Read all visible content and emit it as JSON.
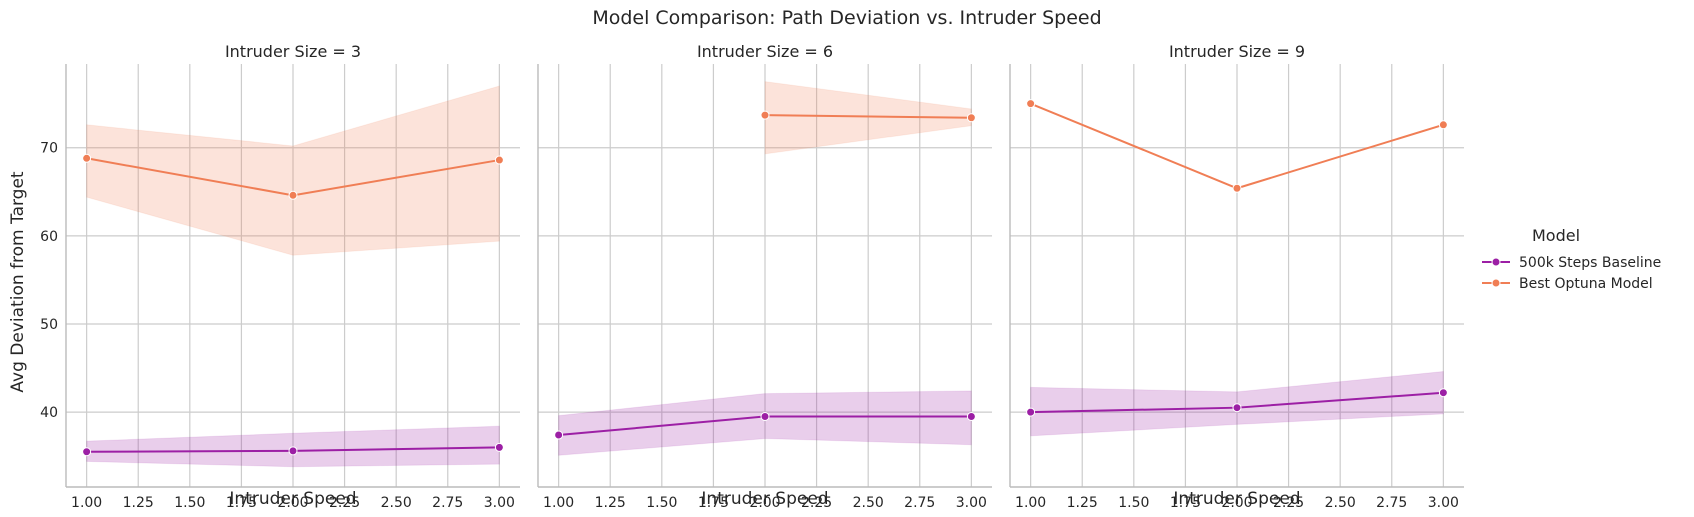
{
  "chart_data": {
    "type": "line",
    "title": "Model Comparison: Path Deviation vs. Intruder Speed",
    "xlabel": "Intruder Speed",
    "ylabel": "Avg Deviation from Target",
    "xlim": [
      0.9,
      3.1
    ],
    "ylim": [
      31.5,
      79.5
    ],
    "xticks": [
      1.0,
      1.25,
      1.5,
      1.75,
      2.0,
      2.25,
      2.5,
      2.75,
      3.0
    ],
    "xtick_labels": [
      "1.00",
      "1.25",
      "1.50",
      "1.75",
      "2.00",
      "2.25",
      "2.50",
      "2.75",
      "3.00"
    ],
    "yticks": [
      40,
      50,
      60,
      70
    ],
    "ytick_labels": [
      "40",
      "50",
      "60",
      "70"
    ],
    "grid": true,
    "legend": {
      "title": "Model",
      "placement": "right",
      "entries": [
        "500k Steps Baseline",
        "Best Optuna Model"
      ]
    },
    "colors": {
      "500k Steps Baseline": "#9c1fa5",
      "Best Optuna Model": "#f07e55"
    },
    "panels": [
      {
        "title": "Intruder Size = 3",
        "series": [
          {
            "name": "500k Steps Baseline",
            "x": [
              1.0,
              2.0,
              3.0
            ],
            "y": [
              35.5,
              35.6,
              36.0
            ],
            "ci_low": [
              34.4,
              33.8,
              34.1
            ],
            "ci_high": [
              36.7,
              37.6,
              38.4
            ]
          },
          {
            "name": "Best Optuna Model",
            "x": [
              1.0,
              2.0,
              3.0
            ],
            "y": [
              68.8,
              64.6,
              68.6
            ],
            "ci_low": [
              64.4,
              57.8,
              59.4
            ],
            "ci_high": [
              72.6,
              70.2,
              77.0
            ]
          }
        ]
      },
      {
        "title": "Intruder Size = 6",
        "series": [
          {
            "name": "500k Steps Baseline",
            "x": [
              1.0,
              2.0,
              3.0
            ],
            "y": [
              37.4,
              39.5,
              39.5
            ],
            "ci_low": [
              35.1,
              37.0,
              36.3
            ],
            "ci_high": [
              39.6,
              42.1,
              42.4
            ]
          },
          {
            "name": "Best Optuna Model",
            "x": [
              2.0,
              3.0
            ],
            "y": [
              73.7,
              73.4
            ],
            "ci_low": [
              69.3,
              72.5
            ],
            "ci_high": [
              77.5,
              74.4
            ]
          }
        ]
      },
      {
        "title": "Intruder Size = 9",
        "series": [
          {
            "name": "500k Steps Baseline",
            "x": [
              1.0,
              2.0,
              3.0
            ],
            "y": [
              40.0,
              40.5,
              42.2
            ],
            "ci_low": [
              37.3,
              38.6,
              39.8
            ],
            "ci_high": [
              42.8,
              42.3,
              44.6
            ]
          },
          {
            "name": "Best Optuna Model",
            "x": [
              1.0,
              2.0,
              3.0
            ],
            "y": [
              75.0,
              65.4,
              72.6
            ],
            "ci_low": [
              75.0,
              65.4,
              72.6
            ],
            "ci_high": [
              75.0,
              65.4,
              72.6
            ]
          }
        ]
      }
    ]
  }
}
